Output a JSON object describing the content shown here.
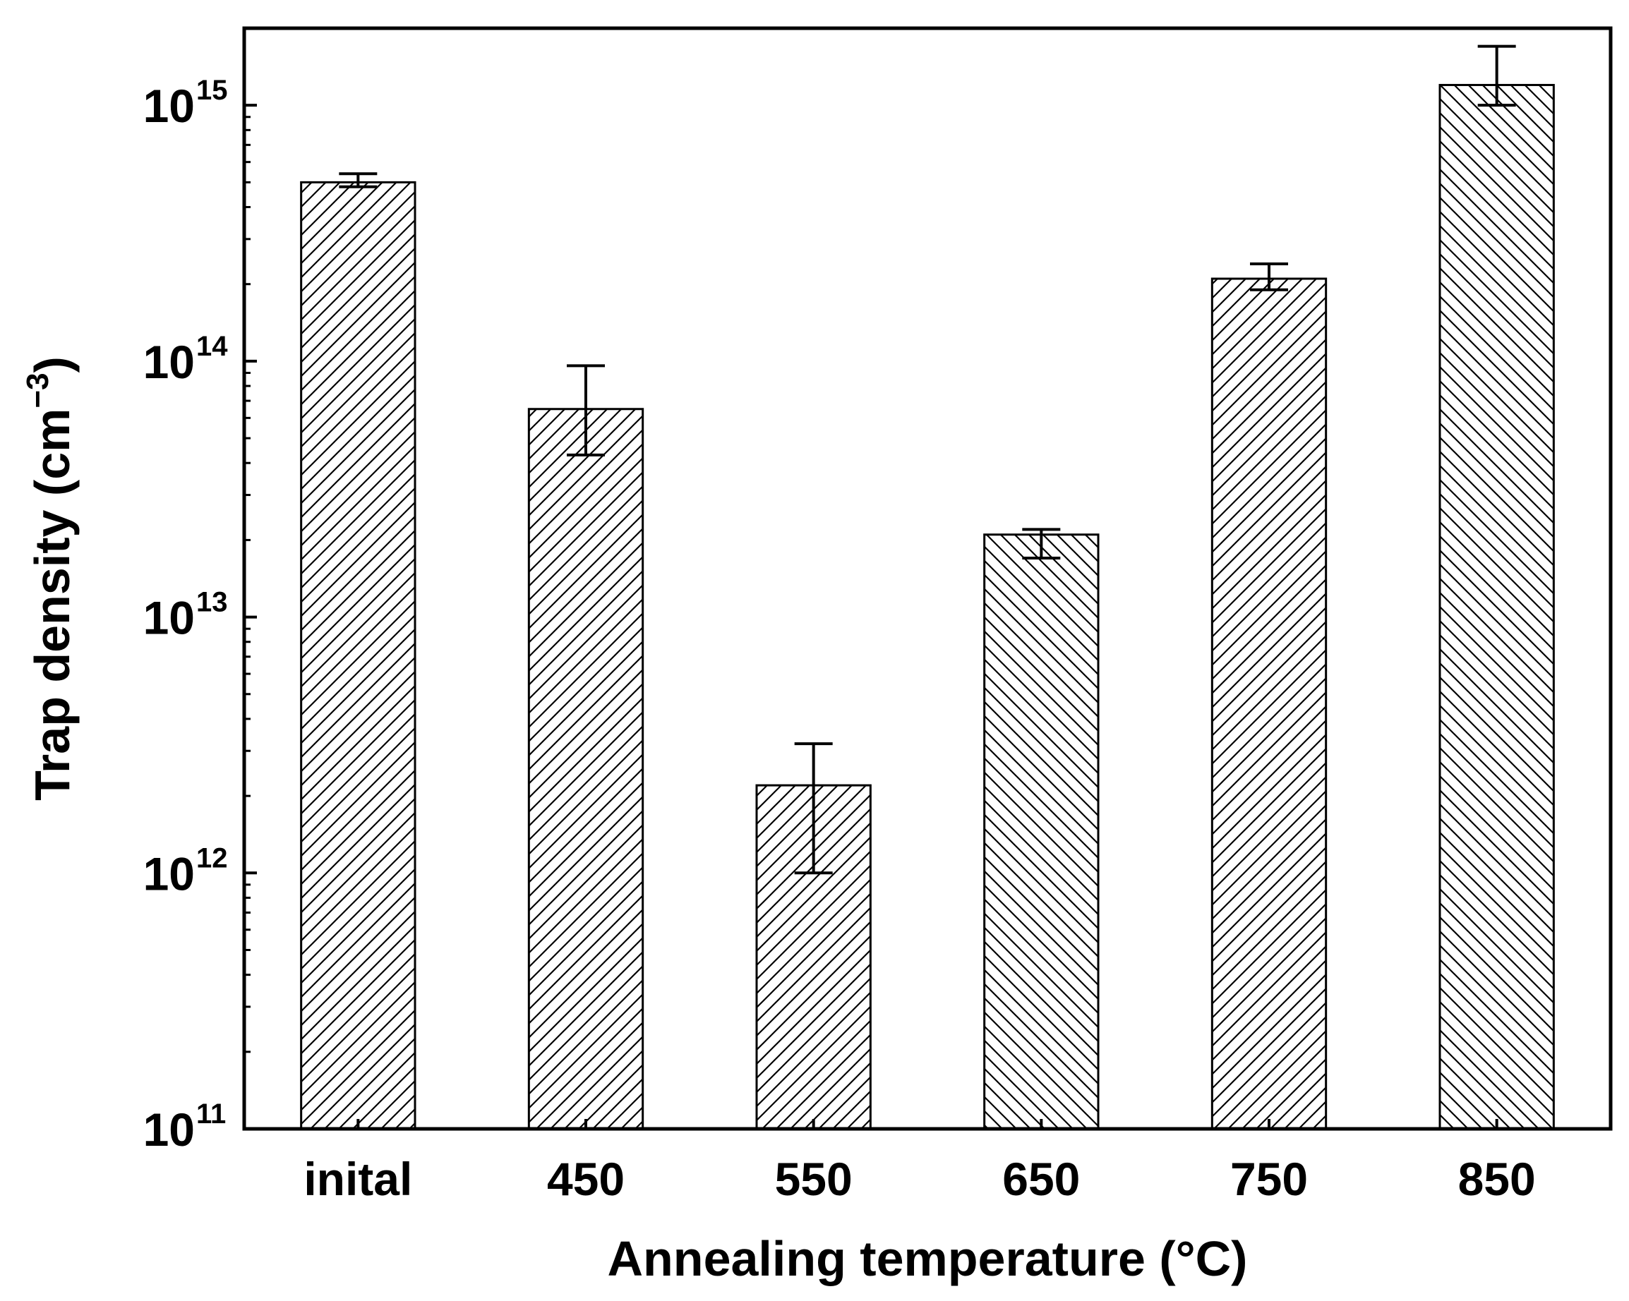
{
  "chart_data": {
    "type": "bar",
    "title": "",
    "xlabel": "Annealing temperature (°C)",
    "ylabel": {
      "main": "Trap density (cm",
      "sup": "−3",
      "close": ")"
    },
    "yscale": "log",
    "ylim": [
      100000000000.0,
      2000000000000000.0
    ],
    "yticks": [
      {
        "base": "10",
        "exp": "11",
        "value": 100000000000.0
      },
      {
        "base": "10",
        "exp": "12",
        "value": 1000000000000.0
      },
      {
        "base": "10",
        "exp": "13",
        "value": 10000000000000.0
      },
      {
        "base": "10",
        "exp": "14",
        "value": 100000000000000.0
      },
      {
        "base": "10",
        "exp": "15",
        "value": 1000000000000000.0
      }
    ],
    "categories": [
      "inital",
      "450",
      "550",
      "650",
      "750",
      "850"
    ],
    "values": [
      500000000000000.0,
      65000000000000.0,
      2200000000000.0,
      21000000000000.0,
      210000000000000.0,
      1200000000000000.0
    ],
    "error_low": [
      480000000000000.0,
      43000000000000.0,
      1000000000000.0,
      17000000000000.0,
      190000000000000.0,
      1000000000000000.0
    ],
    "error_high": [
      540000000000000.0,
      96000000000000.0,
      3200000000000.0,
      22000000000000.0,
      240000000000000.0,
      1700000000000000.0
    ],
    "hatch": [
      "forward",
      "forward",
      "forward",
      "backward",
      "forward",
      "backward"
    ],
    "grid": false,
    "legend": "none",
    "colors": {
      "bar_fill": "#ffffff",
      "bar_stroke": "#000000",
      "hatch": "#000000",
      "axis": "#000000"
    }
  }
}
